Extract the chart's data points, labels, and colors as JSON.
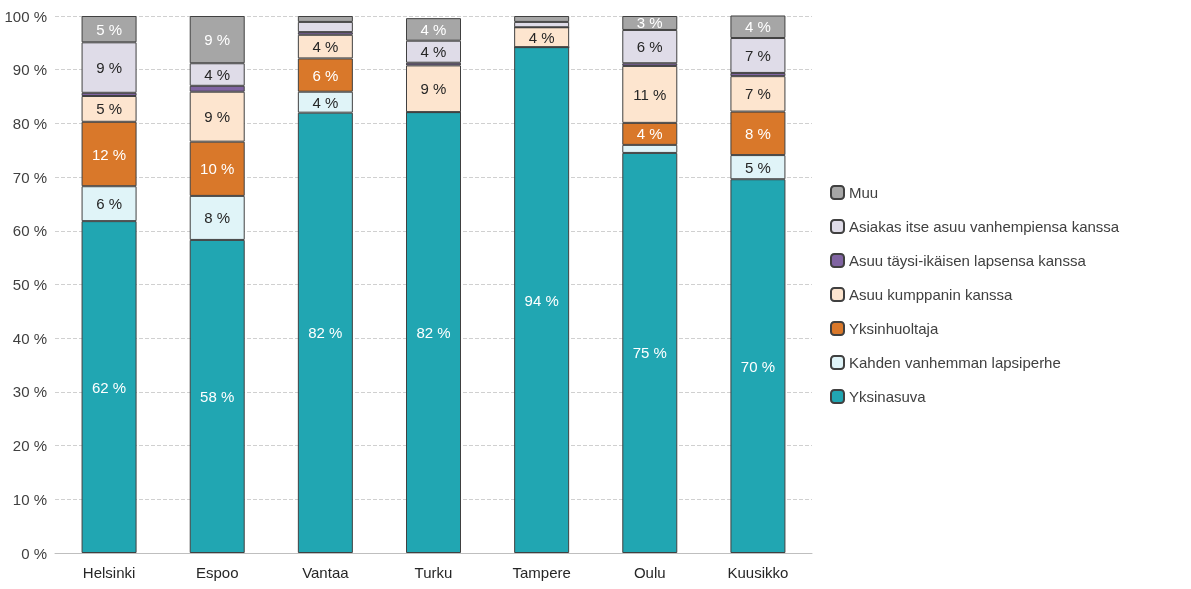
{
  "chart_data": {
    "type": "bar",
    "stacked": true,
    "categories": [
      "Helsinki",
      "Espoo",
      "Vantaa",
      "Turku",
      "Tampere",
      "Oulu",
      "Kuusikko"
    ],
    "series": [
      {
        "name": "Yksinasuva",
        "color": "#21a6b2",
        "values": [
          61.8,
          58.3,
          82.0,
          82.1,
          94.2,
          74.5,
          69.6
        ],
        "value_labels": [
          "62 %",
          "58 %",
          "82 %",
          "82 %",
          "94 %",
          "75 %",
          "70 %"
        ]
      },
      {
        "name": "Kahden vanhemman lapsiperhe",
        "color": "#e0f4f8",
        "values": [
          6.5,
          8.2,
          3.9,
          null,
          0,
          1.5,
          4.5
        ],
        "value_labels": [
          "6 %",
          "8 %",
          "4 %",
          null,
          null,
          null,
          "5 %"
        ]
      },
      {
        "name": "Yksinhuoltaja",
        "color": "#d9782a",
        "values": [
          12.0,
          10.1,
          6.2,
          0,
          0,
          4.1,
          8.1
        ],
        "value_labels": [
          "12 %",
          "10 %",
          "6 %",
          null,
          null,
          "4 %",
          "8 %"
        ]
      },
      {
        "name": "Asuu kumppanin kanssa",
        "color": "#fde5cf",
        "values": [
          4.8,
          9.3,
          4.4,
          8.7,
          3.7,
          10.6,
          6.6
        ],
        "value_labels": [
          "5 %",
          "9 %",
          "4 %",
          "9 %",
          "4 %",
          "11 %",
          "7 %"
        ]
      },
      {
        "name": "Asuu täysi-ikäisen lapsensa kanssa",
        "color": "#8064a2",
        "values": [
          0.6,
          1.1,
          0.5,
          0.5,
          0,
          0.5,
          0.6
        ],
        "value_labels": [
          null,
          null,
          null,
          null,
          null,
          null,
          null
        ]
      },
      {
        "name": "Asiakas itse asuu vanhempiensa kanssa",
        "color": "#dfdce8",
        "values": [
          9.4,
          4.2,
          1.9,
          4.1,
          1.0,
          6.2,
          6.5
        ],
        "value_labels": [
          "9 %",
          "4 %",
          null,
          "4 %",
          null,
          "6 %",
          "7 %"
        ]
      },
      {
        "name": "Muu",
        "color": "#a6a6a6",
        "values": [
          4.9,
          8.8,
          1.1,
          4.2,
          1.1,
          2.6,
          4.2
        ],
        "value_labels": [
          "5 %",
          "9 %",
          null,
          "4 %",
          null,
          "3 %",
          "4 %"
        ]
      }
    ],
    "ylim": [
      0,
      100
    ],
    "yticks": [
      {
        "value": 0,
        "label": "0 %"
      },
      {
        "value": 10,
        "label": "10 %"
      },
      {
        "value": 20,
        "label": "20 %"
      },
      {
        "value": 30,
        "label": "30 %"
      },
      {
        "value": 40,
        "label": "40 %"
      },
      {
        "value": 50,
        "label": "50 %"
      },
      {
        "value": 60,
        "label": "60 %"
      },
      {
        "value": 70,
        "label": "70 %"
      },
      {
        "value": 80,
        "label": "80 %"
      },
      {
        "value": 90,
        "label": "90 %"
      },
      {
        "value": 100,
        "label": "100 %"
      }
    ],
    "grid": "y",
    "legend": "right"
  }
}
